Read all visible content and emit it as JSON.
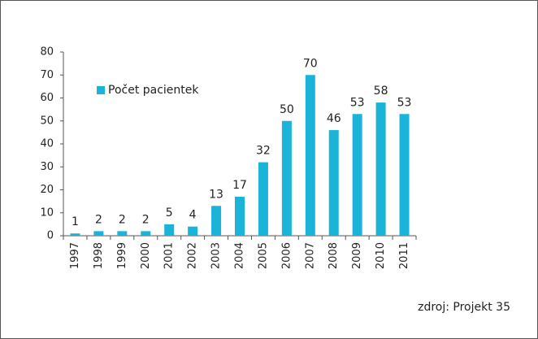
{
  "chart_data": {
    "type": "bar",
    "categories": [
      "1997",
      "1998",
      "1999",
      "2000",
      "2001",
      "2002",
      "2003",
      "2004",
      "2005",
      "2006",
      "2007",
      "2008",
      "2009",
      "2010",
      "2011"
    ],
    "series": [
      {
        "name": "Počet pacientek",
        "color": "#1ab4d8",
        "values": [
          1,
          2,
          2,
          2,
          5,
          4,
          13,
          17,
          32,
          50,
          70,
          46,
          53,
          58,
          53
        ]
      }
    ],
    "ylim": [
      0,
      80
    ],
    "yticks": [
      0,
      10,
      20,
      30,
      40,
      50,
      60,
      70,
      80
    ],
    "grid": false,
    "legend": "upper left",
    "data_labels": true,
    "annotation": "zdroj: Projekt 35"
  }
}
